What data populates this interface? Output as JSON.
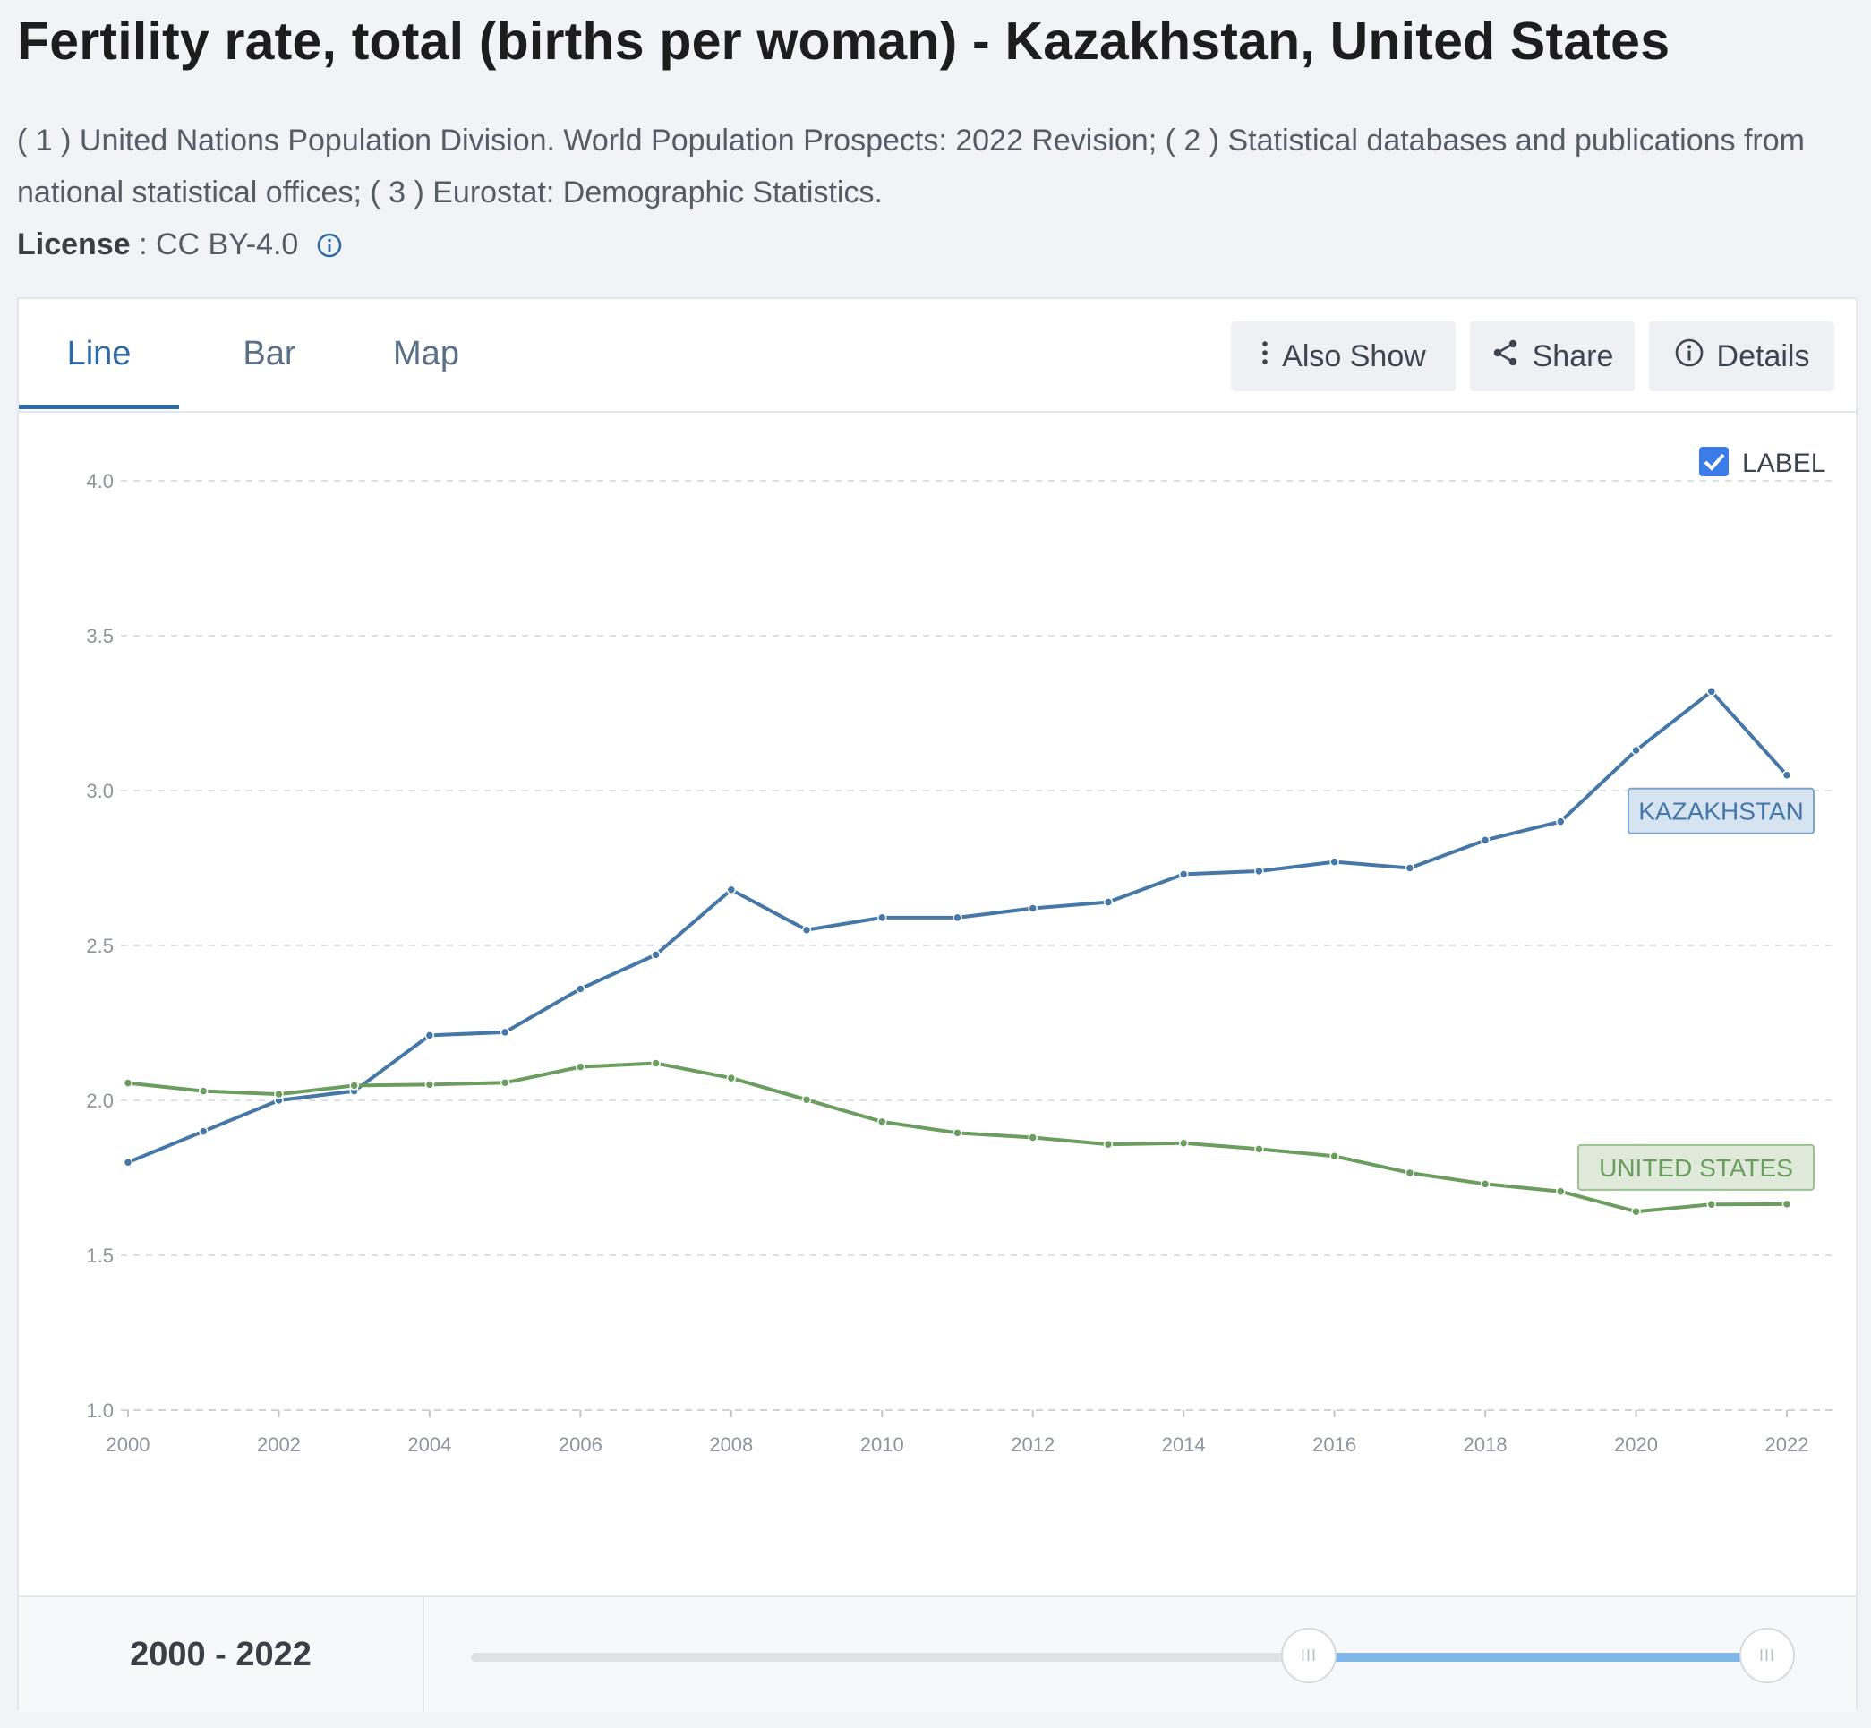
{
  "page": {
    "title": "Fertility rate, total (births per woman) - Kazakhstan, United States",
    "sources": "( 1 ) United Nations Population Division. World Population Prospects: 2022 Revision; ( 2 ) Statistical databases and publications from national statistical offices; ( 3 ) Eurostat: Demographic Statistics.",
    "license_label": "License",
    "license_sep": " : ",
    "license_value": "CC BY-4.0"
  },
  "tabs": [
    {
      "label": "Line"
    },
    {
      "label": "Bar"
    },
    {
      "label": "Map"
    }
  ],
  "toolbar": {
    "also_show": "Also Show",
    "share": "Share",
    "details": "Details"
  },
  "label_toggle": {
    "text": "LABEL",
    "checked": true
  },
  "range": {
    "from": "2000",
    "dash": " - ",
    "to": "2022"
  },
  "slider_handle_glyph": "III",
  "colors": {
    "kazakhstan": "#4577a8",
    "united_states": "#6b9d5f",
    "accent": "#2c6aa8",
    "checkbox": "#3b7ce8"
  },
  "chart_data": {
    "type": "line",
    "title": "Fertility rate, total (births per woman) - Kazakhstan, United States",
    "x": [
      2000,
      2001,
      2002,
      2003,
      2004,
      2005,
      2006,
      2007,
      2008,
      2009,
      2010,
      2011,
      2012,
      2013,
      2014,
      2015,
      2016,
      2017,
      2018,
      2019,
      2020,
      2021,
      2022
    ],
    "xticks": [
      "2000",
      "2002",
      "2004",
      "2006",
      "2008",
      "2010",
      "2012",
      "2014",
      "2016",
      "2018",
      "2020",
      "2022"
    ],
    "yticks": [
      "1.0",
      "1.5",
      "2.0",
      "2.5",
      "3.0",
      "3.5",
      "4.0"
    ],
    "ylim": [
      1.0,
      4.0
    ],
    "xlim": [
      2000,
      2022
    ],
    "grid": true,
    "series": [
      {
        "name": "KAZAKHSTAN",
        "color": "#4577a8",
        "values": [
          1.8,
          1.9,
          2.0,
          2.03,
          2.21,
          2.22,
          2.36,
          2.47,
          2.68,
          2.55,
          2.59,
          2.59,
          2.62,
          2.64,
          2.73,
          2.74,
          2.77,
          2.75,
          2.84,
          2.9,
          3.13,
          3.32,
          3.05
        ]
      },
      {
        "name": "UNITED STATES",
        "color": "#6b9d5f",
        "values": [
          2.056,
          2.03,
          2.02,
          2.048,
          2.051,
          2.057,
          2.108,
          2.12,
          2.072,
          2.002,
          1.931,
          1.895,
          1.88,
          1.858,
          1.862,
          1.843,
          1.82,
          1.766,
          1.73,
          1.706,
          1.641,
          1.664,
          1.665
        ]
      }
    ]
  }
}
